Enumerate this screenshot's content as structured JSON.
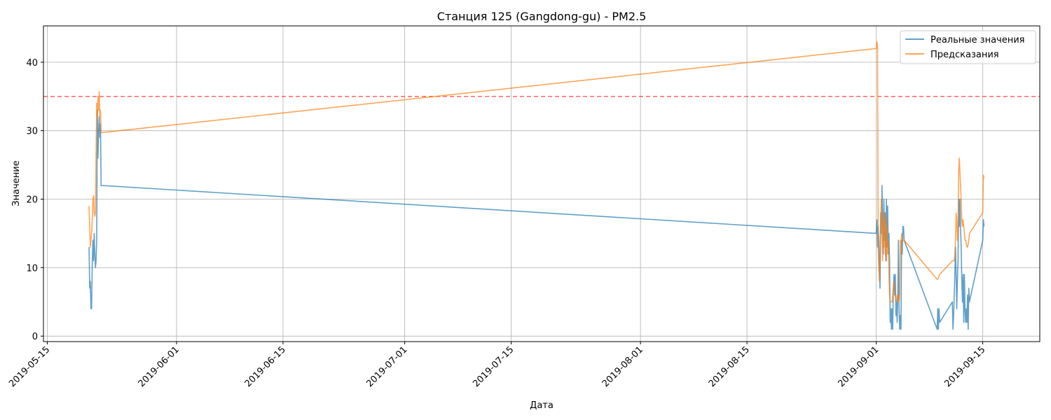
{
  "chart_data": {
    "type": "line",
    "title": "Станция 125 (Gangdong-gu) - PM2.5",
    "xlabel": "Дата",
    "ylabel": "Значение",
    "xlim": [
      "2019-05-14T12:00",
      "2019-09-22T12:00"
    ],
    "ylim": [
      -0.8,
      45.3
    ],
    "x_ticks": [
      "2019-05-15",
      "2019-06-01",
      "2019-06-15",
      "2019-07-01",
      "2019-07-15",
      "2019-08-01",
      "2019-08-15",
      "2019-09-01",
      "2019-09-15"
    ],
    "y_ticks": [
      0,
      10,
      20,
      30,
      40
    ],
    "grid": true,
    "legend_position": "top-right",
    "threshold": {
      "value": 35,
      "color": "#ff0000",
      "style": "dashed"
    },
    "series": [
      {
        "name": "Реальные значения",
        "color": "#1f77b4",
        "points": [
          [
            "2019-05-20T12:00",
            13
          ],
          [
            "2019-05-20T14:00",
            7
          ],
          [
            "2019-05-20T16:00",
            8
          ],
          [
            "2019-05-20T18:00",
            4
          ],
          [
            "2019-05-20T20:00",
            4
          ],
          [
            "2019-05-20T22:00",
            11
          ],
          [
            "2019-05-21T00:00",
            14
          ],
          [
            "2019-05-21T02:00",
            11
          ],
          [
            "2019-05-21T04:00",
            15
          ],
          [
            "2019-05-21T06:00",
            12
          ],
          [
            "2019-05-21T08:00",
            10
          ],
          [
            "2019-05-21T10:00",
            11
          ],
          [
            "2019-05-21T12:00",
            14
          ],
          [
            "2019-05-21T14:00",
            33
          ],
          [
            "2019-05-21T16:00",
            26
          ],
          [
            "2019-05-21T18:00",
            30
          ],
          [
            "2019-05-21T20:00",
            32
          ],
          [
            "2019-05-21T22:00",
            29
          ],
          [
            "2019-05-22T00:00",
            31
          ],
          [
            "2019-05-22T02:00",
            22
          ],
          [
            "2019-09-01T00:00",
            15
          ],
          [
            "2019-09-01T02:00",
            17
          ],
          [
            "2019-09-01T04:00",
            13
          ],
          [
            "2019-09-01T06:00",
            16
          ],
          [
            "2019-09-01T08:00",
            14
          ],
          [
            "2019-09-01T10:00",
            10
          ],
          [
            "2019-09-01T12:00",
            7
          ],
          [
            "2019-09-01T14:00",
            18
          ],
          [
            "2019-09-01T16:00",
            15
          ],
          [
            "2019-09-01T18:00",
            22
          ],
          [
            "2019-09-01T20:00",
            17
          ],
          [
            "2019-09-01T22:00",
            12
          ],
          [
            "2019-09-02T00:00",
            20
          ],
          [
            "2019-09-02T02:00",
            14
          ],
          [
            "2019-09-02T04:00",
            18
          ],
          [
            "2019-09-02T06:00",
            11
          ],
          [
            "2019-09-02T08:00",
            20
          ],
          [
            "2019-09-02T10:00",
            13
          ],
          [
            "2019-09-02T12:00",
            19
          ],
          [
            "2019-09-02T14:00",
            12
          ],
          [
            "2019-09-02T16:00",
            15
          ],
          [
            "2019-09-02T18:00",
            11
          ],
          [
            "2019-09-02T20:00",
            2
          ],
          [
            "2019-09-02T22:00",
            4
          ],
          [
            "2019-09-03T00:00",
            1
          ],
          [
            "2019-09-03T02:00",
            4
          ],
          [
            "2019-09-03T04:00",
            1
          ],
          [
            "2019-09-03T06:00",
            7
          ],
          [
            "2019-09-03T08:00",
            9
          ],
          [
            "2019-09-03T10:00",
            6
          ],
          [
            "2019-09-03T12:00",
            9
          ],
          [
            "2019-09-03T14:00",
            3
          ],
          [
            "2019-09-03T16:00",
            5
          ],
          [
            "2019-09-03T18:00",
            2
          ],
          [
            "2019-09-03T20:00",
            6
          ],
          [
            "2019-09-03T22:00",
            14
          ],
          [
            "2019-09-04T00:00",
            4
          ],
          [
            "2019-09-04T02:00",
            1
          ],
          [
            "2019-09-04T04:00",
            3
          ],
          [
            "2019-09-04T06:00",
            1
          ],
          [
            "2019-09-04T08:00",
            14
          ],
          [
            "2019-09-04T10:00",
            12
          ],
          [
            "2019-09-04T12:00",
            16
          ],
          [
            "2019-09-04T14:00",
            16
          ],
          [
            "2019-09-04T16:00",
            14
          ],
          [
            "2019-09-09T00:00",
            1
          ],
          [
            "2019-09-09T02:00",
            4
          ],
          [
            "2019-09-09T04:00",
            1
          ],
          [
            "2019-09-09T06:00",
            4
          ],
          [
            "2019-09-09T08:00",
            2
          ],
          [
            "2019-09-11T00:00",
            5
          ],
          [
            "2019-09-11T02:00",
            1
          ],
          [
            "2019-09-11T04:00",
            3
          ],
          [
            "2019-09-11T06:00",
            6
          ],
          [
            "2019-09-11T08:00",
            9
          ],
          [
            "2019-09-11T10:00",
            13
          ],
          [
            "2019-09-11T12:00",
            9
          ],
          [
            "2019-09-11T14:00",
            4
          ],
          [
            "2019-09-11T16:00",
            8
          ],
          [
            "2019-09-11T18:00",
            11
          ],
          [
            "2019-09-11T20:00",
            20
          ],
          [
            "2019-09-11T22:00",
            16
          ],
          [
            "2019-09-12T00:00",
            20
          ],
          [
            "2019-09-12T02:00",
            16
          ],
          [
            "2019-09-12T04:00",
            13
          ],
          [
            "2019-09-12T06:00",
            8
          ],
          [
            "2019-09-12T08:00",
            5
          ],
          [
            "2019-09-12T10:00",
            9
          ],
          [
            "2019-09-12T12:00",
            2
          ],
          [
            "2019-09-12T14:00",
            9
          ],
          [
            "2019-09-12T16:00",
            4
          ],
          [
            "2019-09-12T18:00",
            2
          ],
          [
            "2019-09-12T20:00",
            4
          ],
          [
            "2019-09-12T22:00",
            2
          ],
          [
            "2019-09-13T00:00",
            6
          ],
          [
            "2019-09-13T02:00",
            1
          ],
          [
            "2019-09-13T04:00",
            7
          ],
          [
            "2019-09-13T06:00",
            5
          ],
          [
            "2019-09-15T00:00",
            14
          ],
          [
            "2019-09-15T02:00",
            17
          ],
          [
            "2019-09-15T04:00",
            16
          ]
        ]
      },
      {
        "name": "Предсказания",
        "color": "#ff7f0e",
        "points": [
          [
            "2019-05-20T12:00",
            19
          ],
          [
            "2019-05-20T14:00",
            16
          ],
          [
            "2019-05-20T16:00",
            13
          ],
          [
            "2019-05-20T18:00",
            14
          ],
          [
            "2019-05-20T20:00",
            15
          ],
          [
            "2019-05-20T22:00",
            17
          ],
          [
            "2019-05-21T00:00",
            20
          ],
          [
            "2019-05-21T02:00",
            20.5
          ],
          [
            "2019-05-21T04:00",
            18
          ],
          [
            "2019-05-21T06:00",
            17.5
          ],
          [
            "2019-05-21T08:00",
            18
          ],
          [
            "2019-05-21T10:00",
            26
          ],
          [
            "2019-05-21T12:00",
            34
          ],
          [
            "2019-05-21T14:00",
            32
          ],
          [
            "2019-05-21T16:00",
            35
          ],
          [
            "2019-05-21T18:00",
            33
          ],
          [
            "2019-05-21T20:00",
            35.7
          ],
          [
            "2019-05-21T22:00",
            32
          ],
          [
            "2019-05-22T00:00",
            33
          ],
          [
            "2019-05-22T02:00",
            29.7
          ],
          [
            "2019-09-01T00:00",
            42
          ],
          [
            "2019-09-01T02:00",
            43
          ],
          [
            "2019-09-01T04:00",
            42.5
          ],
          [
            "2019-09-01T06:00",
            13
          ],
          [
            "2019-09-01T08:00",
            10
          ],
          [
            "2019-09-01T10:00",
            8
          ],
          [
            "2019-09-01T12:00",
            12
          ],
          [
            "2019-09-01T14:00",
            17
          ],
          [
            "2019-09-01T16:00",
            20
          ],
          [
            "2019-09-01T18:00",
            15
          ],
          [
            "2019-09-01T20:00",
            11
          ],
          [
            "2019-09-01T22:00",
            18
          ],
          [
            "2019-09-02T00:00",
            13
          ],
          [
            "2019-09-02T02:00",
            17
          ],
          [
            "2019-09-02T04:00",
            12
          ],
          [
            "2019-09-02T06:00",
            18
          ],
          [
            "2019-09-02T08:00",
            11
          ],
          [
            "2019-09-02T10:00",
            16
          ],
          [
            "2019-09-02T12:00",
            12
          ],
          [
            "2019-09-02T14:00",
            14
          ],
          [
            "2019-09-02T16:00",
            9
          ],
          [
            "2019-09-02T18:00",
            6
          ],
          [
            "2019-09-02T20:00",
            5
          ],
          [
            "2019-09-02T22:00",
            5
          ],
          [
            "2019-09-03T00:00",
            5
          ],
          [
            "2019-09-03T02:00",
            5
          ],
          [
            "2019-09-03T04:00",
            6
          ],
          [
            "2019-09-03T06:00",
            7
          ],
          [
            "2019-09-03T08:00",
            8
          ],
          [
            "2019-09-03T10:00",
            7
          ],
          [
            "2019-09-03T12:00",
            6
          ],
          [
            "2019-09-03T14:00",
            5
          ],
          [
            "2019-09-03T16:00",
            5
          ],
          [
            "2019-09-03T18:00",
            6
          ],
          [
            "2019-09-03T20:00",
            6
          ],
          [
            "2019-09-03T22:00",
            6
          ],
          [
            "2019-09-04T00:00",
            5
          ],
          [
            "2019-09-04T02:00",
            6
          ],
          [
            "2019-09-04T04:00",
            14
          ],
          [
            "2019-09-04T06:00",
            12
          ],
          [
            "2019-09-04T08:00",
            15
          ],
          [
            "2019-09-04T10:00",
            14
          ],
          [
            "2019-09-04T12:00",
            14
          ],
          [
            "2019-09-04T14:00",
            14
          ],
          [
            "2019-09-04T16:00",
            14
          ],
          [
            "2019-09-09T00:00",
            8.3
          ],
          [
            "2019-09-09T02:00",
            8.3
          ],
          [
            "2019-09-09T04:00",
            8.5
          ],
          [
            "2019-09-09T06:00",
            8.8
          ],
          [
            "2019-09-09T08:00",
            9
          ],
          [
            "2019-09-11T00:00",
            11
          ],
          [
            "2019-09-11T02:00",
            11
          ],
          [
            "2019-09-11T04:00",
            11
          ],
          [
            "2019-09-11T06:00",
            11
          ],
          [
            "2019-09-11T08:00",
            12
          ],
          [
            "2019-09-11T10:00",
            14
          ],
          [
            "2019-09-11T12:00",
            18
          ],
          [
            "2019-09-11T14:00",
            17
          ],
          [
            "2019-09-11T16:00",
            14
          ],
          [
            "2019-09-11T18:00",
            15
          ],
          [
            "2019-09-11T20:00",
            24
          ],
          [
            "2019-09-11T22:00",
            26
          ],
          [
            "2019-09-12T00:00",
            24
          ],
          [
            "2019-09-12T02:00",
            22
          ],
          [
            "2019-09-12T04:00",
            20
          ],
          [
            "2019-09-12T06:00",
            17
          ],
          [
            "2019-09-12T08:00",
            16
          ],
          [
            "2019-09-12T10:00",
            17
          ],
          [
            "2019-09-12T12:00",
            16
          ],
          [
            "2019-09-12T14:00",
            15
          ],
          [
            "2019-09-12T16:00",
            14
          ],
          [
            "2019-09-12T18:00",
            14
          ],
          [
            "2019-09-12T20:00",
            13.5
          ],
          [
            "2019-09-12T22:00",
            13
          ],
          [
            "2019-09-13T00:00",
            13
          ],
          [
            "2019-09-13T02:00",
            13.5
          ],
          [
            "2019-09-13T04:00",
            14
          ],
          [
            "2019-09-13T06:00",
            15
          ],
          [
            "2019-09-15T00:00",
            18
          ],
          [
            "2019-09-15T02:00",
            23.5
          ],
          [
            "2019-09-15T04:00",
            23
          ]
        ]
      }
    ]
  }
}
